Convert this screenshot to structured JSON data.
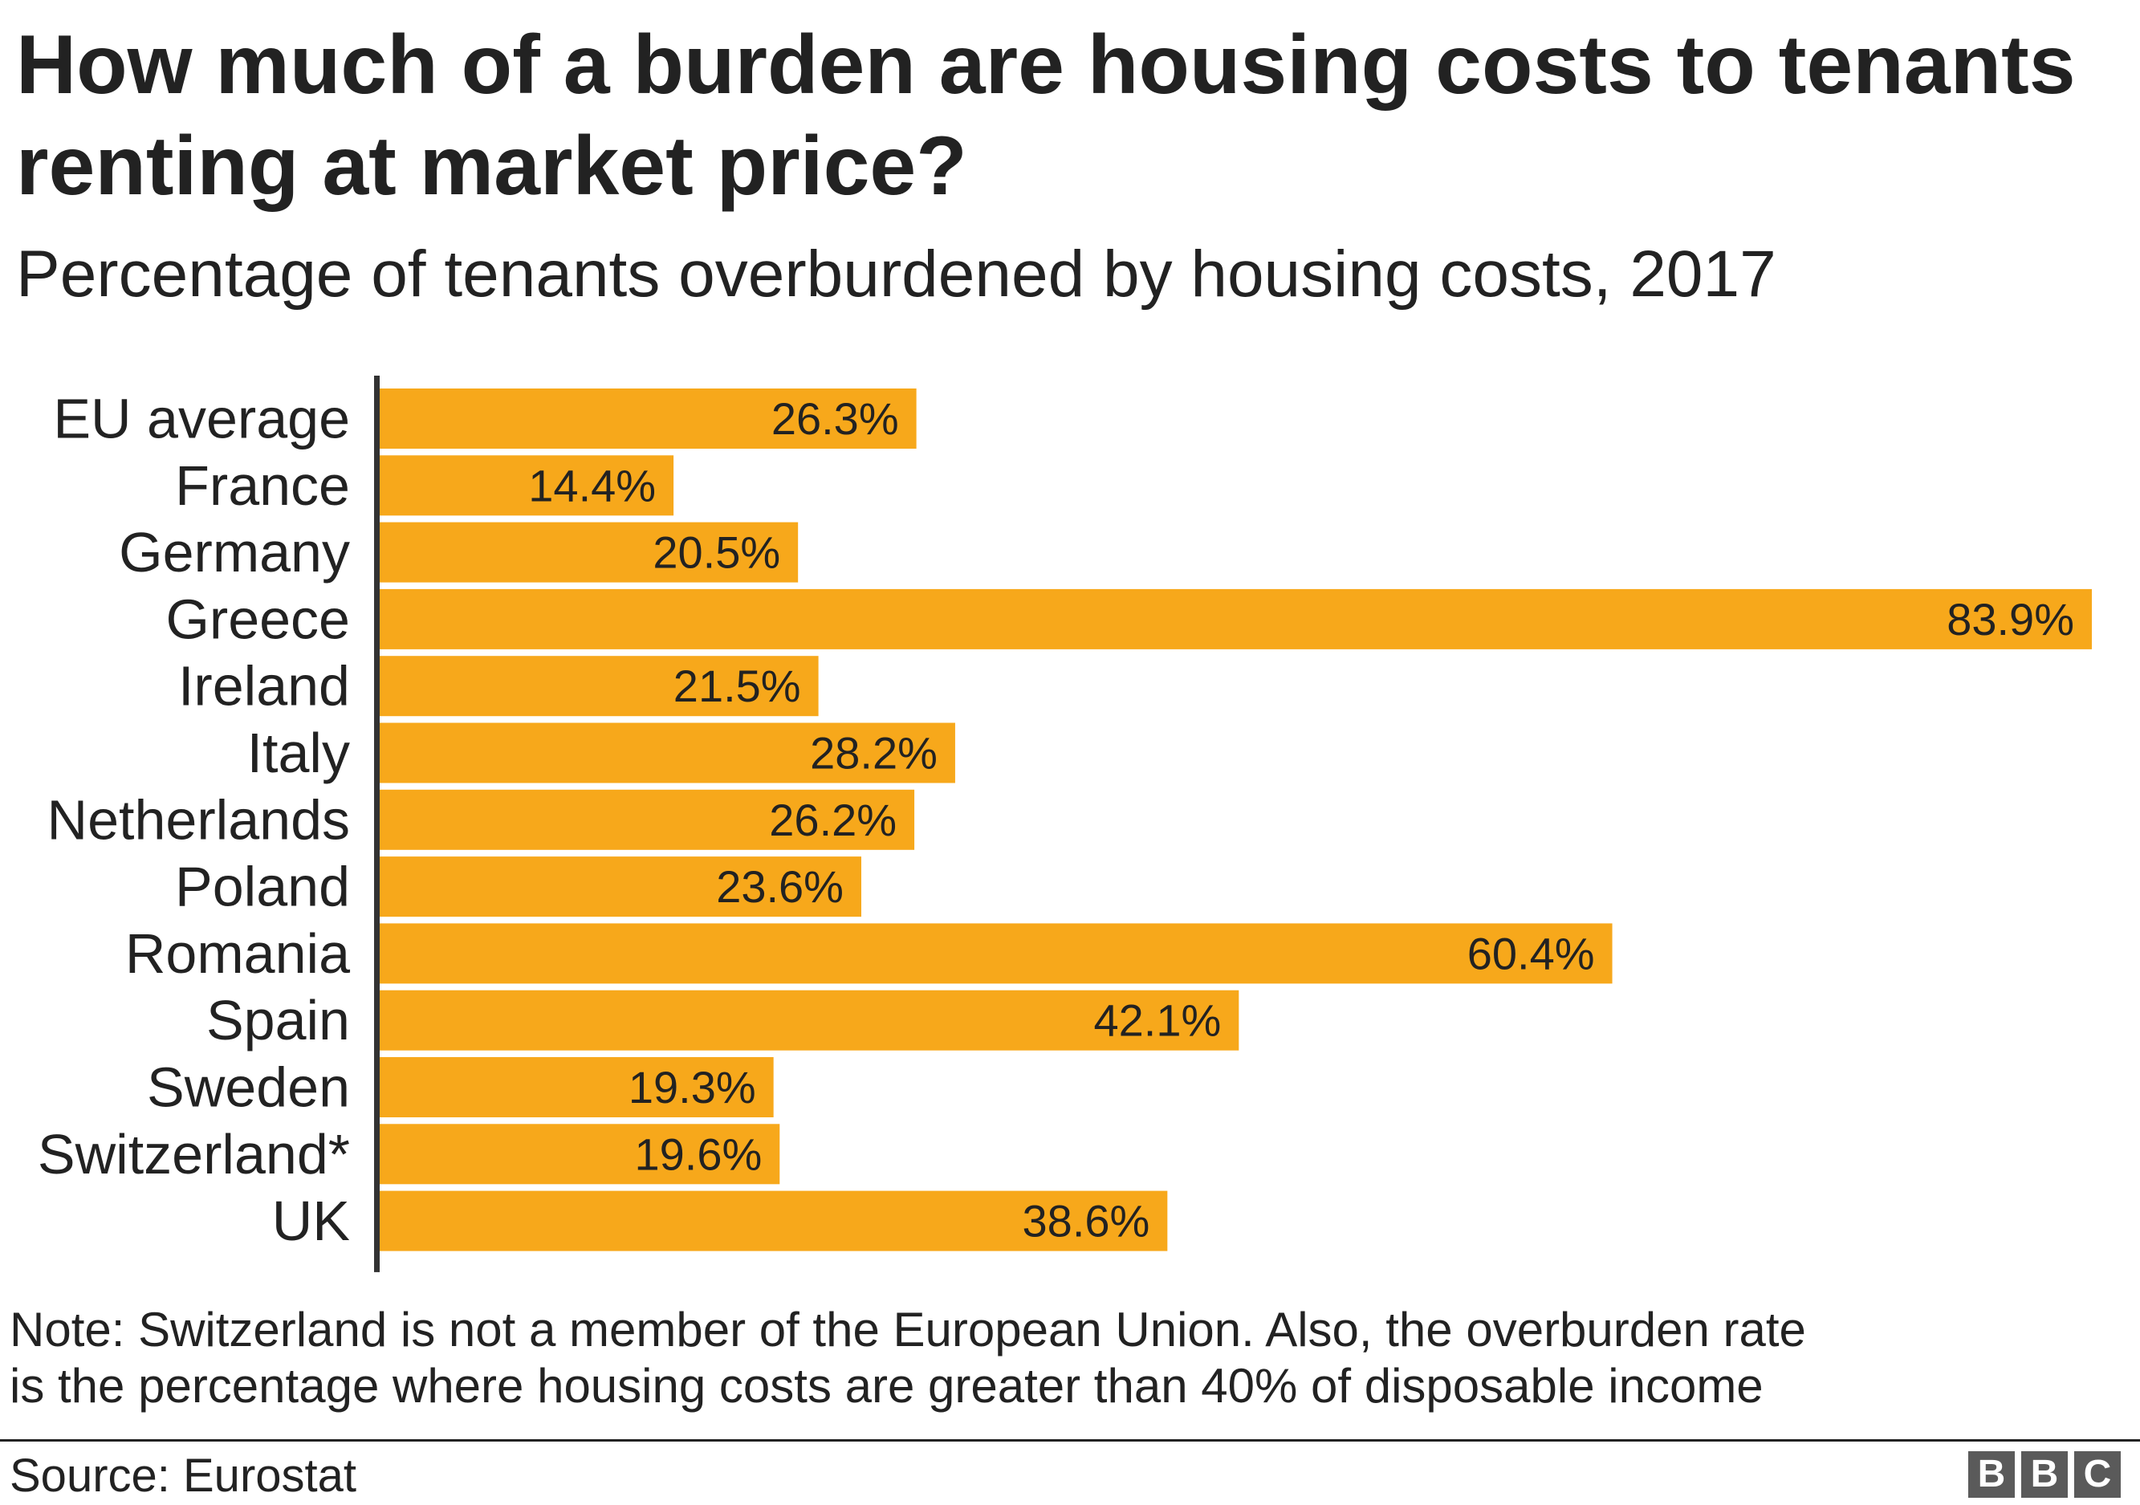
{
  "chart_data": {
    "type": "bar",
    "orientation": "horizontal",
    "title": "How much of a burden are housing costs to tenants renting at market price?",
    "subtitle": "Percentage of tenants overburdened by housing costs, 2017",
    "categories": [
      "EU average",
      "France",
      "Germany",
      "Greece",
      "Ireland",
      "Italy",
      "Netherlands",
      "Poland",
      "Romania",
      "Spain",
      "Sweden",
      "Switzerland*",
      "UK"
    ],
    "values": [
      26.3,
      14.4,
      20.5,
      83.9,
      21.5,
      28.2,
      26.2,
      23.6,
      60.4,
      42.1,
      19.3,
      19.6,
      38.6
    ],
    "value_labels": [
      "26.3%",
      "14.4%",
      "20.5%",
      "83.9%",
      "21.5%",
      "28.2%",
      "26.2%",
      "23.6%",
      "60.4%",
      "42.1%",
      "19.3%",
      "19.6%",
      "38.6%"
    ],
    "xlim": [
      0,
      83.9
    ],
    "grid": false,
    "legend": "none",
    "bar_color": "#f7a81b",
    "axis_color": "#333333"
  },
  "note": {
    "line1": "Note: Switzerland is not a member of the European Union. Also, the overburden rate",
    "line2": "is the percentage where housing costs are greater than 40% of disposable income"
  },
  "source": "Source: Eurostat",
  "logo": {
    "letters": [
      "B",
      "B",
      "C"
    ],
    "color": "#5a5a5a"
  }
}
